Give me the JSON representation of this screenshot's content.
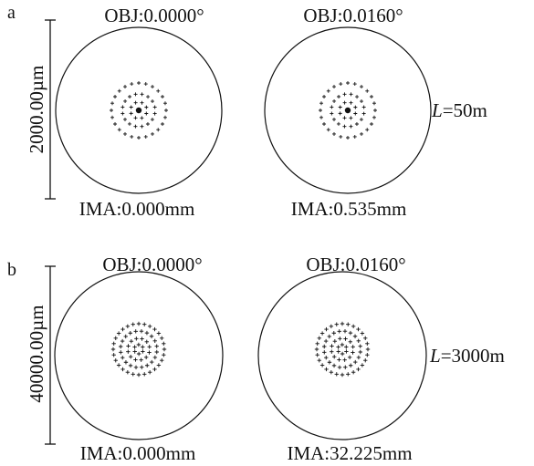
{
  "colors": {
    "ink": "#111111",
    "background": "#ffffff"
  },
  "panels": [
    {
      "letter": "a",
      "scale_label": "2000.00µm",
      "length_prefix": "L",
      "length_value": "=50m",
      "spots": [
        {
          "obj_label": "OBJ:0.0000°",
          "ima_label": "IMA:0.000mm"
        },
        {
          "obj_label": "OBJ:0.0160°",
          "ima_label": "IMA:0.535mm"
        }
      ]
    },
    {
      "letter": "b",
      "scale_label": "40000.00µm",
      "length_prefix": "L",
      "length_value": "=3000m",
      "spots": [
        {
          "obj_label": "OBJ:0.0000°",
          "ima_label": "IMA:0.000mm"
        },
        {
          "obj_label": "OBJ:0.0160°",
          "ima_label": "IMA:32.225mm"
        }
      ]
    }
  ]
}
